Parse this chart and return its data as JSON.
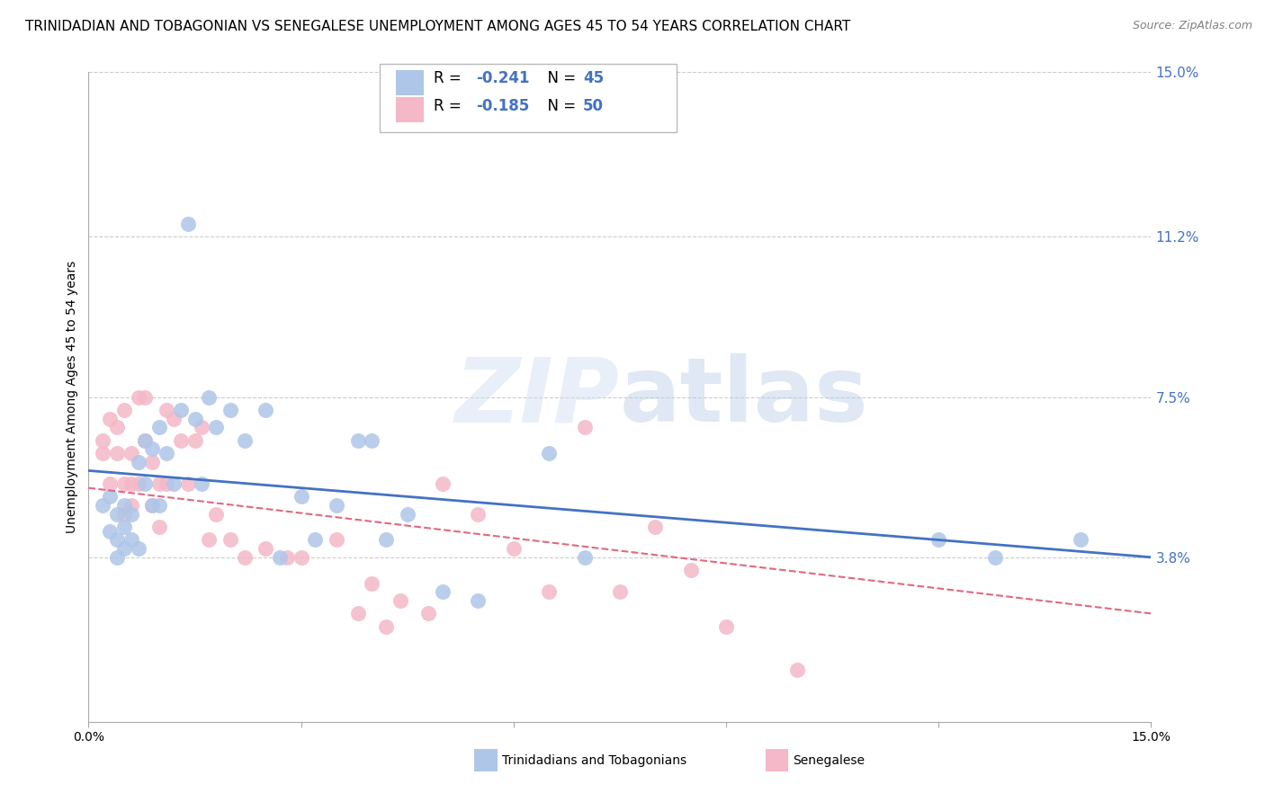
{
  "title": "TRINIDADIAN AND TOBAGONIAN VS SENEGALESE UNEMPLOYMENT AMONG AGES 45 TO 54 YEARS CORRELATION CHART",
  "source": "Source: ZipAtlas.com",
  "ylabel": "Unemployment Among Ages 45 to 54 years",
  "xmin": 0.0,
  "xmax": 0.15,
  "ymin": 0.0,
  "ymax": 0.15,
  "right_yticks": [
    0.15,
    0.112,
    0.075,
    0.038
  ],
  "right_ytick_labels": [
    "15.0%",
    "11.2%",
    "7.5%",
    "3.8%"
  ],
  "blue_scatter_x": [
    0.002,
    0.003,
    0.003,
    0.004,
    0.004,
    0.004,
    0.005,
    0.005,
    0.005,
    0.006,
    0.006,
    0.007,
    0.007,
    0.008,
    0.008,
    0.009,
    0.009,
    0.01,
    0.01,
    0.011,
    0.012,
    0.013,
    0.014,
    0.015,
    0.016,
    0.017,
    0.018,
    0.02,
    0.022,
    0.025,
    0.027,
    0.03,
    0.032,
    0.035,
    0.038,
    0.04,
    0.042,
    0.045,
    0.05,
    0.055,
    0.065,
    0.07,
    0.12,
    0.128,
    0.14
  ],
  "blue_scatter_y": [
    0.05,
    0.052,
    0.044,
    0.048,
    0.042,
    0.038,
    0.05,
    0.045,
    0.04,
    0.048,
    0.042,
    0.06,
    0.04,
    0.065,
    0.055,
    0.063,
    0.05,
    0.068,
    0.05,
    0.062,
    0.055,
    0.072,
    0.115,
    0.07,
    0.055,
    0.075,
    0.068,
    0.072,
    0.065,
    0.072,
    0.038,
    0.052,
    0.042,
    0.05,
    0.065,
    0.065,
    0.042,
    0.048,
    0.03,
    0.028,
    0.062,
    0.038,
    0.042,
    0.038,
    0.042
  ],
  "pink_scatter_x": [
    0.002,
    0.002,
    0.003,
    0.003,
    0.004,
    0.004,
    0.005,
    0.005,
    0.005,
    0.006,
    0.006,
    0.006,
    0.007,
    0.007,
    0.008,
    0.008,
    0.009,
    0.009,
    0.01,
    0.01,
    0.011,
    0.011,
    0.012,
    0.013,
    0.014,
    0.015,
    0.016,
    0.017,
    0.018,
    0.02,
    0.022,
    0.025,
    0.028,
    0.03,
    0.035,
    0.038,
    0.04,
    0.042,
    0.044,
    0.048,
    0.05,
    0.055,
    0.06,
    0.065,
    0.07,
    0.075,
    0.08,
    0.085,
    0.09,
    0.1
  ],
  "pink_scatter_y": [
    0.065,
    0.062,
    0.07,
    0.055,
    0.068,
    0.062,
    0.072,
    0.055,
    0.048,
    0.062,
    0.055,
    0.05,
    0.075,
    0.055,
    0.075,
    0.065,
    0.06,
    0.05,
    0.055,
    0.045,
    0.072,
    0.055,
    0.07,
    0.065,
    0.055,
    0.065,
    0.068,
    0.042,
    0.048,
    0.042,
    0.038,
    0.04,
    0.038,
    0.038,
    0.042,
    0.025,
    0.032,
    0.022,
    0.028,
    0.025,
    0.055,
    0.048,
    0.04,
    0.03,
    0.068,
    0.03,
    0.045,
    0.035,
    0.022,
    0.012
  ],
  "blue_line_x": [
    0.0,
    0.15
  ],
  "blue_line_y": [
    0.058,
    0.038
  ],
  "pink_line_x": [
    0.0,
    0.15
  ],
  "pink_line_y": [
    0.054,
    0.025
  ],
  "background_color": "#ffffff",
  "grid_color": "#cccccc",
  "blue_color": "#aec6e8",
  "pink_color": "#f4b8c8",
  "blue_line_color": "#4472c4",
  "pink_line_color": "#e06880",
  "title_fontsize": 11,
  "source_fontsize": 9,
  "legend_text_color": "#4472c4"
}
